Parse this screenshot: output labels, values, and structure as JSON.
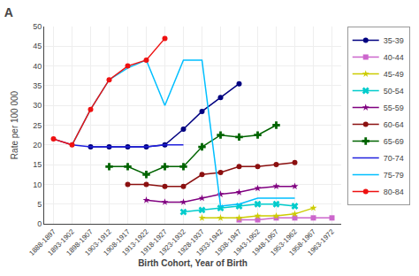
{
  "chart_data": {
    "type": "line",
    "title": "A",
    "xlabel": "Birth Cohort, Year of Birth",
    "ylabel": "Rate per 100 000",
    "categories": [
      "1888-1897",
      "1893-1902",
      "1898-1907",
      "1903-1912",
      "1908-1917",
      "1913-1922",
      "1918-1927",
      "1923-1932",
      "1928-1937",
      "1933-1942",
      "1938-1947",
      "1943-1952",
      "1948-1957",
      "1953-1962",
      "1958-1967",
      "1963-1972"
    ],
    "series": [
      {
        "name": "35-39",
        "color": "#000080",
        "marker": "circle",
        "line_style": "solid",
        "values": [
          null,
          null,
          19.5,
          19.5,
          19.5,
          19.5,
          20.0,
          24.0,
          28.5,
          32.0,
          35.5,
          null,
          null,
          null,
          null,
          null
        ]
      },
      {
        "name": "40-44",
        "color": "#cc66cc",
        "marker": "square",
        "line_style": "solid",
        "values": [
          null,
          null,
          null,
          null,
          null,
          null,
          null,
          null,
          null,
          null,
          1.0,
          1.0,
          1.5,
          1.5,
          1.5,
          1.5
        ]
      },
      {
        "name": "45-49",
        "color": "#cccc00",
        "marker": "star",
        "line_style": "solid",
        "values": [
          null,
          null,
          null,
          null,
          null,
          null,
          null,
          null,
          1.5,
          1.5,
          1.5,
          2.0,
          2.0,
          2.5,
          4.0,
          null
        ]
      },
      {
        "name": "50-54",
        "color": "#00cccc",
        "marker": "x",
        "line_style": "solid",
        "values": [
          null,
          null,
          null,
          null,
          null,
          null,
          null,
          3.0,
          3.5,
          4.0,
          4.5,
          5.0,
          5.0,
          4.5,
          null,
          null
        ]
      },
      {
        "name": "55-59",
        "color": "#800080",
        "marker": "star",
        "line_style": "solid",
        "values": [
          null,
          null,
          null,
          null,
          null,
          6.0,
          5.5,
          5.5,
          6.5,
          7.5,
          8.0,
          9.0,
          9.5,
          9.5,
          null,
          null
        ]
      },
      {
        "name": "60-64",
        "color": "#8b1010",
        "marker": "circle",
        "line_style": "solid",
        "values": [
          null,
          null,
          null,
          null,
          10.0,
          10.0,
          9.5,
          9.5,
          12.5,
          13.0,
          14.5,
          14.5,
          15.0,
          15.5,
          null,
          null
        ]
      },
      {
        "name": "65-69",
        "color": "#006400",
        "marker": "plus",
        "line_style": "solid",
        "values": [
          null,
          null,
          null,
          14.5,
          14.5,
          12.5,
          14.5,
          14.5,
          19.5,
          22.5,
          22.0,
          22.5,
          25.0,
          null,
          null,
          null
        ]
      },
      {
        "name": "70-74",
        "color": "#2020dd",
        "marker": "none",
        "line_style": "solid",
        "values": [
          21.5,
          20.0,
          19.5,
          19.5,
          19.5,
          19.5,
          20.0,
          20.0,
          null,
          null,
          null,
          null,
          null,
          null,
          null,
          null
        ]
      },
      {
        "name": "75-79",
        "color": "#00bfff",
        "marker": "none",
        "line_style": "solid",
        "values": [
          null,
          20.0,
          29.0,
          36.5,
          39.5,
          41.5,
          30.0,
          41.5,
          41.5,
          4.5,
          5.0,
          6.5,
          6.5,
          6.5,
          null,
          null
        ]
      },
      {
        "name": "80-84",
        "color": "#ee1111",
        "marker": "circle",
        "line_style": "solid",
        "values": [
          21.5,
          20.0,
          29.0,
          36.5,
          40.0,
          41.5,
          47.0,
          null,
          null,
          null,
          null,
          null,
          null,
          null,
          null,
          null
        ]
      }
    ],
    "ylim": [
      0,
      50
    ],
    "yticks": [
      0,
      5,
      10,
      15,
      20,
      25,
      30,
      35,
      40,
      45,
      50
    ],
    "grid": true,
    "legend": "upper right"
  }
}
